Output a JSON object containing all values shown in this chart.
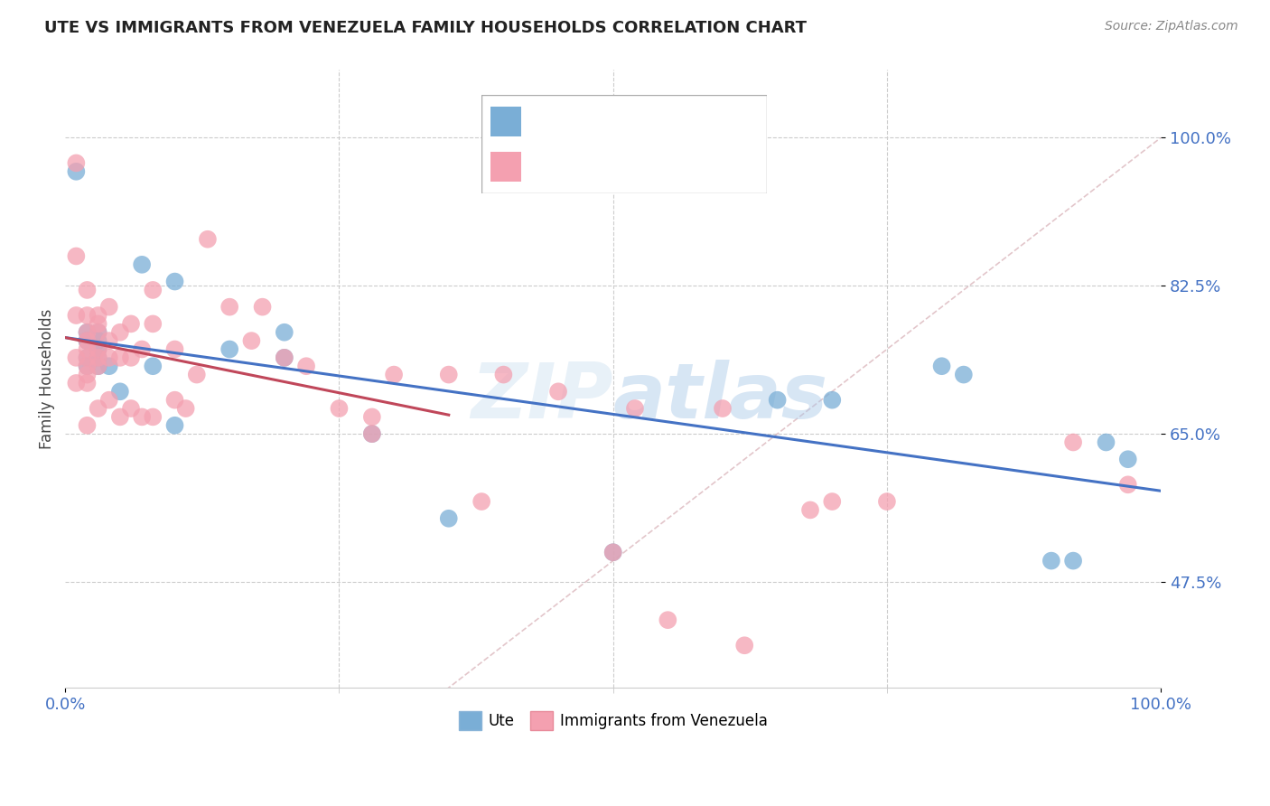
{
  "title": "UTE VS IMMIGRANTS FROM VENEZUELA FAMILY HOUSEHOLDS CORRELATION CHART",
  "source": "Source: ZipAtlas.com",
  "ylabel": "Family Households",
  "legend_label1": "Ute",
  "legend_label2": "Immigrants from Venezuela",
  "color_ute": "#7aaed6",
  "color_venezuela": "#f4a0b0",
  "color_trend_ute": "#4472c4",
  "color_trend_venezuela": "#c0475a",
  "color_diagonal": "#d0a0a8",
  "ytick_labels": [
    "47.5%",
    "65.0%",
    "82.5%",
    "100.0%"
  ],
  "ytick_values": [
    0.475,
    0.65,
    0.825,
    1.0
  ],
  "xlim": [
    0.0,
    1.0
  ],
  "ylim": [
    0.35,
    1.08
  ],
  "ute_x": [
    0.01,
    0.02,
    0.02,
    0.02,
    0.02,
    0.02,
    0.03,
    0.03,
    0.03,
    0.03,
    0.03,
    0.04,
    0.05,
    0.07,
    0.08,
    0.1,
    0.1,
    0.15,
    0.2,
    0.2,
    0.28,
    0.35,
    0.5,
    0.65,
    0.7,
    0.8,
    0.82,
    0.9,
    0.92,
    0.95,
    0.97
  ],
  "ute_y": [
    0.96,
    0.77,
    0.76,
    0.76,
    0.74,
    0.73,
    0.77,
    0.76,
    0.75,
    0.74,
    0.73,
    0.73,
    0.7,
    0.85,
    0.73,
    0.83,
    0.66,
    0.75,
    0.77,
    0.74,
    0.65,
    0.55,
    0.51,
    0.69,
    0.69,
    0.73,
    0.72,
    0.5,
    0.5,
    0.64,
    0.62
  ],
  "venezuela_x": [
    0.01,
    0.01,
    0.01,
    0.01,
    0.01,
    0.02,
    0.02,
    0.02,
    0.02,
    0.02,
    0.02,
    0.02,
    0.02,
    0.02,
    0.02,
    0.03,
    0.03,
    0.03,
    0.03,
    0.03,
    0.03,
    0.03,
    0.04,
    0.04,
    0.04,
    0.04,
    0.05,
    0.05,
    0.05,
    0.06,
    0.06,
    0.06,
    0.07,
    0.07,
    0.08,
    0.08,
    0.08,
    0.1,
    0.1,
    0.11,
    0.12,
    0.13,
    0.15,
    0.17,
    0.18,
    0.2,
    0.22,
    0.25,
    0.28,
    0.28,
    0.3,
    0.35,
    0.38,
    0.4,
    0.45,
    0.5,
    0.52,
    0.55,
    0.6,
    0.62,
    0.68,
    0.7,
    0.75,
    0.92,
    0.97
  ],
  "venezuela_y": [
    0.97,
    0.86,
    0.79,
    0.74,
    0.71,
    0.82,
    0.79,
    0.77,
    0.76,
    0.75,
    0.74,
    0.73,
    0.72,
    0.71,
    0.66,
    0.79,
    0.78,
    0.77,
    0.75,
    0.74,
    0.73,
    0.68,
    0.8,
    0.76,
    0.74,
    0.69,
    0.77,
    0.74,
    0.67,
    0.78,
    0.74,
    0.68,
    0.75,
    0.67,
    0.82,
    0.78,
    0.67,
    0.75,
    0.69,
    0.68,
    0.72,
    0.88,
    0.8,
    0.76,
    0.8,
    0.74,
    0.73,
    0.68,
    0.67,
    0.65,
    0.72,
    0.72,
    0.57,
    0.72,
    0.7,
    0.51,
    0.68,
    0.43,
    0.68,
    0.4,
    0.56,
    0.57,
    0.57,
    0.64,
    0.59
  ]
}
